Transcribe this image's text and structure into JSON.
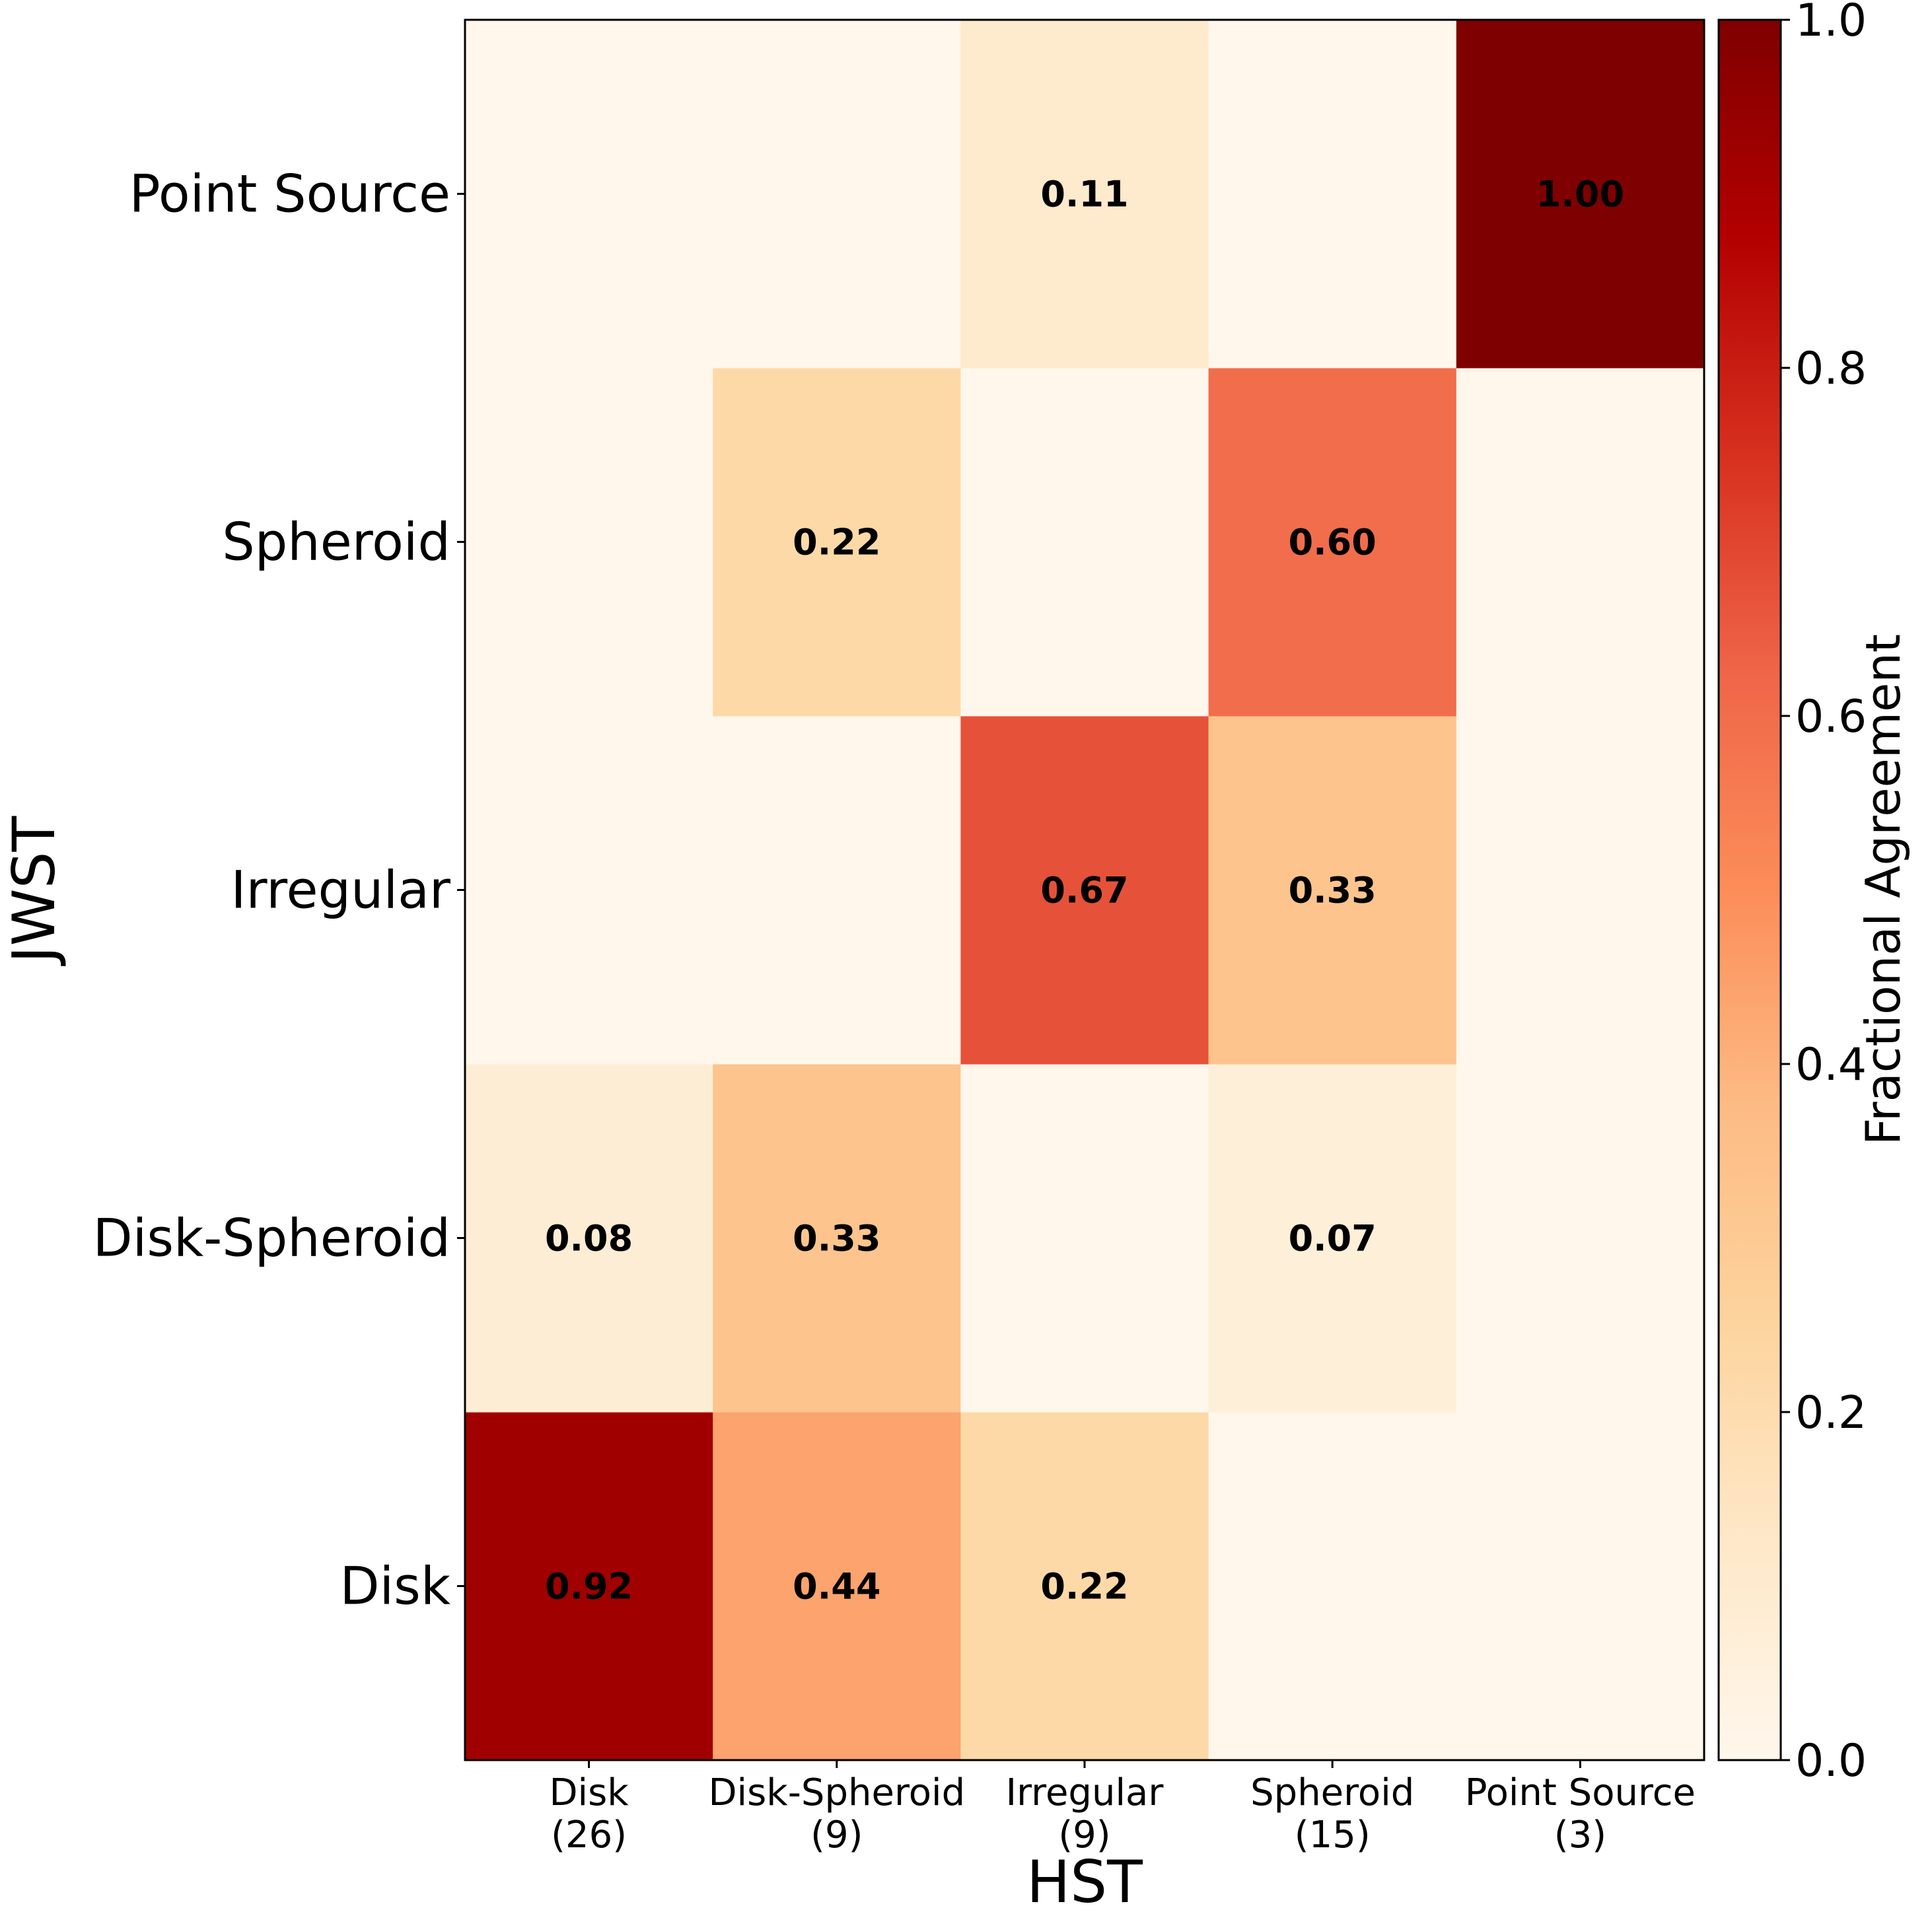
{
  "chart_data": {
    "type": "heatmap",
    "xlabel": "HST",
    "ylabel": "JWST",
    "x_categories": [
      {
        "name": "Disk",
        "count": "(26)"
      },
      {
        "name": "Disk-Spheroid",
        "count": "(9)"
      },
      {
        "name": "Irregular",
        "count": "(9)"
      },
      {
        "name": "Spheroid",
        "count": "(15)"
      },
      {
        "name": "Point Source",
        "count": "(3)"
      }
    ],
    "y_categories": [
      "Disk",
      "Disk-Spheroid",
      "Irregular",
      "Spheroid",
      "Point Source"
    ],
    "values": [
      [
        0.92,
        0.44,
        0.22,
        0.0,
        0.0
      ],
      [
        0.08,
        0.33,
        0.0,
        0.07,
        0.0
      ],
      [
        0.0,
        0.0,
        0.67,
        0.33,
        0.0
      ],
      [
        0.0,
        0.22,
        0.0,
        0.6,
        0.0
      ],
      [
        0.0,
        0.0,
        0.11,
        0.0,
        1.0
      ]
    ],
    "annotations": [
      {
        "row": 0,
        "col": 0,
        "text": "0.92"
      },
      {
        "row": 0,
        "col": 1,
        "text": "0.44"
      },
      {
        "row": 0,
        "col": 2,
        "text": "0.22"
      },
      {
        "row": 1,
        "col": 0,
        "text": "0.08"
      },
      {
        "row": 1,
        "col": 1,
        "text": "0.33"
      },
      {
        "row": 1,
        "col": 3,
        "text": "0.07"
      },
      {
        "row": 2,
        "col": 2,
        "text": "0.67"
      },
      {
        "row": 2,
        "col": 3,
        "text": "0.33"
      },
      {
        "row": 3,
        "col": 1,
        "text": "0.22"
      },
      {
        "row": 3,
        "col": 3,
        "text": "0.60"
      },
      {
        "row": 4,
        "col": 2,
        "text": "0.11"
      },
      {
        "row": 4,
        "col": 4,
        "text": "1.00"
      }
    ],
    "colormap": "OrRd",
    "colorbar": {
      "label": "Fractional Agreement",
      "range": [
        0.0,
        1.0
      ],
      "ticks": [
        "0.0",
        "0.2",
        "0.4",
        "0.6",
        "0.8",
        "1.0"
      ]
    }
  }
}
